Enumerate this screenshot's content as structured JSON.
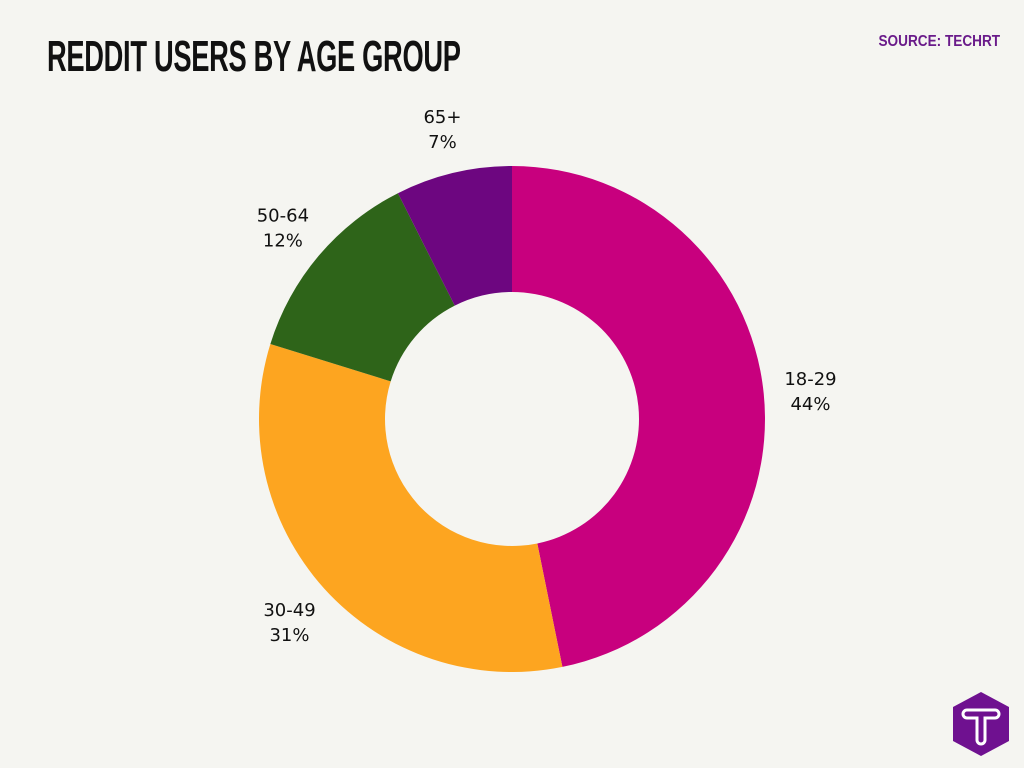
{
  "title": "REDDIT USERS BY AGE GROUP",
  "source": "SOURCE: TECHRT",
  "logo_text": "T",
  "chart_data": {
    "type": "pie",
    "donut": true,
    "title": "REDDIT USERS BY AGE GROUP",
    "categories": [
      "18-29",
      "30-49",
      "50-64",
      "65+"
    ],
    "values": [
      44,
      31,
      12,
      7
    ],
    "labels": [
      "44%",
      "31%",
      "12%",
      "7%"
    ],
    "colors": [
      "#c8007e",
      "#fda520",
      "#2e6419",
      "#6d0680"
    ],
    "start": "top",
    "direction": "clockwise",
    "legend": "none"
  }
}
